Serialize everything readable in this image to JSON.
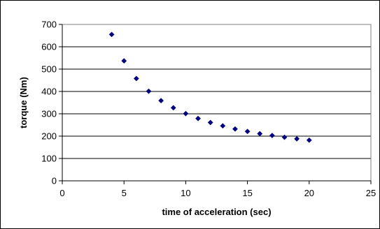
{
  "chart_data": {
    "type": "scatter",
    "title": "",
    "xlabel": "time of acceleration (sec)",
    "ylabel": "torque (Nm)",
    "xlim": [
      0,
      25
    ],
    "ylim": [
      0,
      700
    ],
    "xticks": [
      0,
      5,
      10,
      15,
      20,
      25
    ],
    "yticks": [
      0,
      100,
      200,
      300,
      400,
      500,
      600,
      700
    ],
    "grid": "horizontal",
    "legend": "none",
    "marker": "diamond",
    "marker_color": "#000080",
    "series": [
      {
        "points": [
          {
            "x": 4,
            "y": 655
          },
          {
            "x": 5,
            "y": 537
          },
          {
            "x": 6,
            "y": 458
          },
          {
            "x": 7,
            "y": 401
          },
          {
            "x": 8,
            "y": 359
          },
          {
            "x": 9,
            "y": 327
          },
          {
            "x": 10,
            "y": 301
          },
          {
            "x": 11,
            "y": 279
          },
          {
            "x": 12,
            "y": 261
          },
          {
            "x": 13,
            "y": 246
          },
          {
            "x": 14,
            "y": 232
          },
          {
            "x": 15,
            "y": 221
          },
          {
            "x": 16,
            "y": 211
          },
          {
            "x": 17,
            "y": 203
          },
          {
            "x": 18,
            "y": 195
          },
          {
            "x": 19,
            "y": 188
          },
          {
            "x": 20,
            "y": 182
          }
        ]
      }
    ]
  }
}
